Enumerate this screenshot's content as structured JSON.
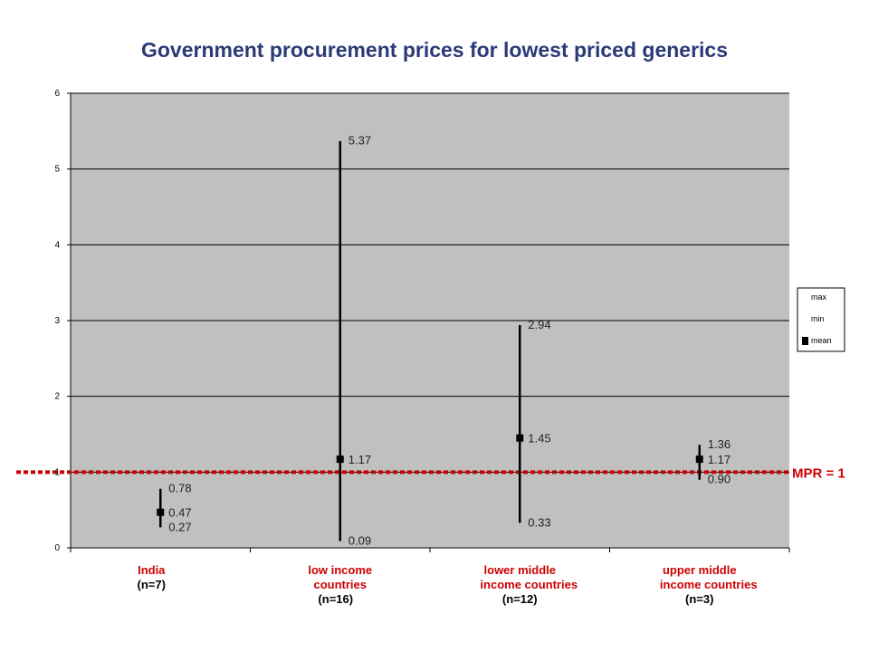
{
  "chart_data": {
    "type": "scatter",
    "title": "Government procurement prices for lowest priced generics",
    "ylim": [
      0,
      6
    ],
    "yticks": [
      "0",
      "1",
      "2",
      "3",
      "4",
      "5",
      "6"
    ],
    "grid": true,
    "legend_placement": "right",
    "legend": [
      "max",
      "min",
      "mean"
    ],
    "categories": [
      {
        "lines": [
          [
            "India",
            "red"
          ],
          [
            "(n=7)",
            "black"
          ]
        ]
      },
      {
        "lines": [
          [
            "low income",
            "red"
          ],
          [
            "countries",
            "red"
          ],
          [
            "(n=16)",
            "black"
          ]
        ]
      },
      {
        "lines": [
          [
            "lower middle",
            "red"
          ],
          [
            "income countries",
            "red"
          ],
          [
            "(n=12)",
            "black"
          ]
        ]
      },
      {
        "lines": [
          [
            "upper middle",
            "red"
          ],
          [
            "income countries",
            "red"
          ],
          [
            "(n=3)",
            "black"
          ]
        ]
      }
    ],
    "series": [
      {
        "name": "max",
        "values": [
          0.78,
          5.37,
          2.94,
          1.36
        ],
        "labels": [
          "0.78",
          "5.37",
          "2.94",
          "1.36"
        ]
      },
      {
        "name": "min",
        "values": [
          0.27,
          0.09,
          0.33,
          0.9
        ],
        "labels": [
          "0.27",
          "0.09",
          "0.33",
          "0.90"
        ]
      },
      {
        "name": "mean",
        "values": [
          0.47,
          1.17,
          1.45,
          1.17
        ],
        "labels": [
          "0.47",
          "1.17",
          "1.45",
          "1.17"
        ]
      }
    ],
    "reference_line": {
      "value": 1,
      "label": "MPR = 1",
      "color": "#cc0000"
    },
    "colors": {
      "plot_bg": "#c0c0c0",
      "title": "#2a3a78",
      "category": "#cc0000"
    }
  }
}
